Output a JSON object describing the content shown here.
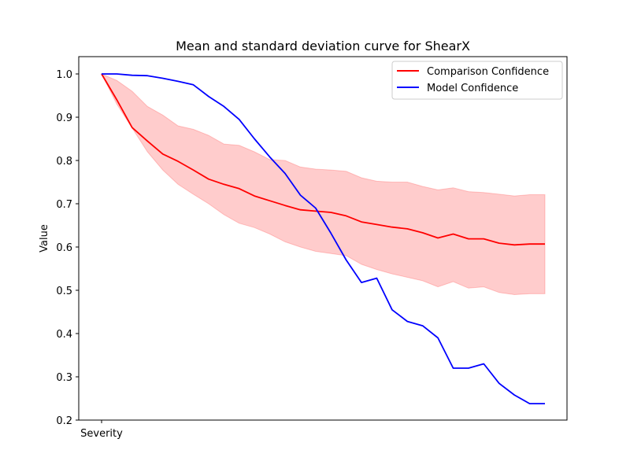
{
  "chart_data": {
    "type": "line",
    "title": "Mean and standard deviation curve for ShearX",
    "xlabel": "Severity",
    "ylabel": "Value",
    "ylim": [
      0.2,
      1.04
    ],
    "yticks": [
      "0.2",
      "0.3",
      "0.4",
      "0.5",
      "0.6",
      "0.7",
      "0.8",
      "0.9",
      "1.0"
    ],
    "xticks": [
      "Severity"
    ],
    "legend_position": "top-right",
    "grid": false,
    "x": [
      0,
      1,
      2,
      3,
      4,
      5,
      6,
      7,
      8,
      9,
      10,
      11,
      12,
      13,
      14,
      15,
      16,
      17,
      18,
      19,
      20,
      21,
      22,
      23,
      24,
      25,
      26,
      27,
      28,
      29
    ],
    "series": [
      {
        "name": "Comparison Confidence",
        "color": "#ff0000",
        "values": [
          1.0,
          0.94,
          0.876,
          0.845,
          0.815,
          0.798,
          0.778,
          0.757,
          0.745,
          0.735,
          0.718,
          0.707,
          0.696,
          0.686,
          0.683,
          0.68,
          0.672,
          0.658,
          0.652,
          0.646,
          0.642,
          0.633,
          0.621,
          0.63,
          0.619,
          0.619,
          0.609,
          0.605,
          0.607,
          0.607
        ],
        "std_upper": [
          1.0,
          0.985,
          0.96,
          0.925,
          0.905,
          0.88,
          0.872,
          0.858,
          0.838,
          0.835,
          0.82,
          0.802,
          0.8,
          0.785,
          0.78,
          0.778,
          0.775,
          0.76,
          0.752,
          0.75,
          0.75,
          0.74,
          0.732,
          0.737,
          0.728,
          0.726,
          0.722,
          0.718,
          0.721,
          0.721
        ],
        "std_lower": [
          1.0,
          0.93,
          0.875,
          0.82,
          0.778,
          0.745,
          0.722,
          0.7,
          0.675,
          0.655,
          0.645,
          0.63,
          0.612,
          0.6,
          0.59,
          0.585,
          0.58,
          0.56,
          0.548,
          0.538,
          0.53,
          0.522,
          0.508,
          0.52,
          0.505,
          0.508,
          0.495,
          0.49,
          0.492,
          0.492
        ]
      },
      {
        "name": "Model Confidence",
        "color": "#0000ff",
        "values": [
          1.0,
          1.0,
          0.997,
          0.996,
          0.99,
          0.983,
          0.975,
          0.948,
          0.925,
          0.895,
          0.85,
          0.808,
          0.77,
          0.72,
          0.69,
          0.632,
          0.57,
          0.518,
          0.528,
          0.455,
          0.428,
          0.418,
          0.39,
          0.32,
          0.32,
          0.33,
          0.285,
          0.258,
          0.238,
          0.238
        ]
      }
    ],
    "band_color": "#ff0000",
    "band_opacity": 0.2
  }
}
